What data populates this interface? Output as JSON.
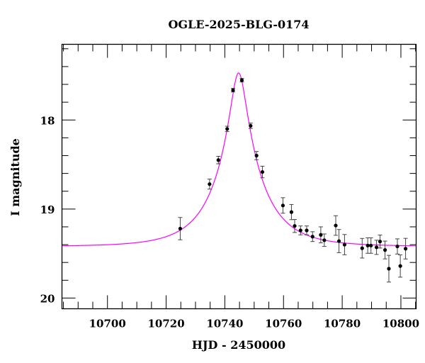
{
  "chart_data": {
    "type": "scatter",
    "title": "OGLE-2025-BLG-0174",
    "xlabel": "HJD - 2450000",
    "ylabel": "I magnitude",
    "xlim": [
      10684.5,
      10805.2
    ],
    "ylim": [
      20.12,
      17.15
    ],
    "y_inverted": true,
    "xticks": [
      10700,
      10720,
      10740,
      10760,
      10780,
      10800
    ],
    "xminor_step": 5,
    "yticks": [
      18,
      19,
      20
    ],
    "yminor_step": 0.2,
    "grid": false,
    "legend": "none",
    "colors": {
      "model": "#ff00ff",
      "points": "#000000",
      "errorbars": "#444444"
    },
    "model": {
      "type": "Paczynski point-lens",
      "t0": 10744.7,
      "u0": 0.168,
      "tE": 15.2,
      "I_base": 19.42
    },
    "points": [
      {
        "x": 10724.8,
        "y": 19.22,
        "err": 0.125
      },
      {
        "x": 10734.8,
        "y": 18.72,
        "err": 0.056
      },
      {
        "x": 10737.8,
        "y": 18.45,
        "err": 0.042
      },
      {
        "x": 10740.8,
        "y": 18.1,
        "err": 0.03
      },
      {
        "x": 10742.8,
        "y": 17.665,
        "err": 0.02
      },
      {
        "x": 10745.8,
        "y": 17.553,
        "err": 0.02
      },
      {
        "x": 10748.8,
        "y": 18.065,
        "err": 0.03
      },
      {
        "x": 10750.8,
        "y": 18.4,
        "err": 0.046
      },
      {
        "x": 10752.8,
        "y": 18.584,
        "err": 0.065
      },
      {
        "x": 10759.8,
        "y": 18.96,
        "err": 0.087
      },
      {
        "x": 10762.7,
        "y": 19.034,
        "err": 0.085
      },
      {
        "x": 10763.8,
        "y": 19.19,
        "err": 0.073
      },
      {
        "x": 10765.8,
        "y": 19.24,
        "err": 0.05
      },
      {
        "x": 10767.9,
        "y": 19.24,
        "err": 0.05
      },
      {
        "x": 10769.9,
        "y": 19.31,
        "err": 0.055
      },
      {
        "x": 10772.7,
        "y": 19.29,
        "err": 0.09
      },
      {
        "x": 10773.9,
        "y": 19.35,
        "err": 0.07
      },
      {
        "x": 10777.8,
        "y": 19.185,
        "err": 0.11
      },
      {
        "x": 10778.9,
        "y": 19.36,
        "err": 0.13
      },
      {
        "x": 10780.8,
        "y": 19.4,
        "err": 0.114
      },
      {
        "x": 10786.8,
        "y": 19.44,
        "err": 0.11
      },
      {
        "x": 10788.7,
        "y": 19.41,
        "err": 0.087
      },
      {
        "x": 10789.8,
        "y": 19.41,
        "err": 0.087
      },
      {
        "x": 10791.7,
        "y": 19.43,
        "err": 0.08
      },
      {
        "x": 10792.9,
        "y": 19.365,
        "err": 0.073
      },
      {
        "x": 10794.6,
        "y": 19.46,
        "err": 0.1
      },
      {
        "x": 10795.9,
        "y": 19.67,
        "err": 0.15
      },
      {
        "x": 10798.8,
        "y": 19.42,
        "err": 0.085
      },
      {
        "x": 10799.8,
        "y": 19.64,
        "err": 0.125
      },
      {
        "x": 10801.6,
        "y": 19.445,
        "err": 0.116
      }
    ]
  }
}
